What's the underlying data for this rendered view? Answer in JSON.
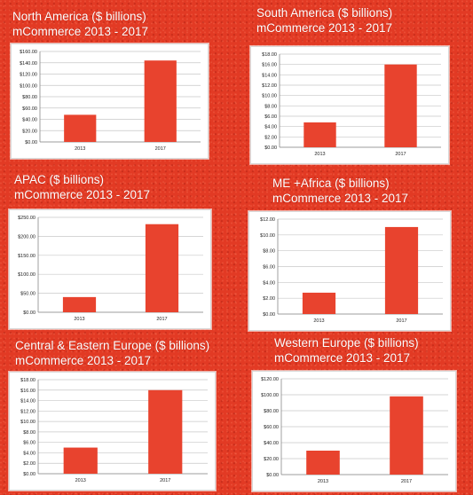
{
  "colors": {
    "bar": "#e8432e",
    "background": "#e23a24",
    "frame": "#ffffff"
  },
  "chart_data": [
    {
      "type": "bar",
      "title": "North America ($ billions)",
      "subtitle": "mCommerce 2013 - 2017",
      "categories": [
        "2013",
        "2017"
      ],
      "values": [
        48,
        144
      ],
      "ylim": [
        0,
        160
      ],
      "yticks": [
        "$0.00",
        "$20.00",
        "$40.00",
        "$60.00",
        "$80.00",
        "$100.00",
        "$120.00",
        "$140.00",
        "$160.00"
      ],
      "grid": true
    },
    {
      "type": "bar",
      "title": "South America ($ billions)",
      "subtitle": "mCommerce 2013 - 2017",
      "categories": [
        "2013",
        "2017"
      ],
      "values": [
        4.8,
        16
      ],
      "ylim": [
        0,
        18
      ],
      "yticks": [
        "$0.00",
        "$2.00",
        "$4.00",
        "$6.00",
        "$8.00",
        "$10.00",
        "$12.00",
        "$14.00",
        "$16.00",
        "$18.00"
      ],
      "grid": true
    },
    {
      "type": "bar",
      "title": "APAC ($ billions)",
      "subtitle": "mCommerce 2013 - 2017",
      "categories": [
        "2013",
        "2017"
      ],
      "values": [
        40,
        232
      ],
      "ylim": [
        0,
        250
      ],
      "yticks": [
        "$0.00",
        "$50.00",
        "$100.00",
        "$150.00",
        "$200.00",
        "$250.00"
      ],
      "grid": true
    },
    {
      "type": "bar",
      "title": "ME +Africa ($ billions)",
      "subtitle": "mCommerce 2013 - 2017",
      "categories": [
        "2013",
        "2017"
      ],
      "values": [
        2.7,
        11
      ],
      "ylim": [
        0,
        12
      ],
      "yticks": [
        "$0.00",
        "$2.00",
        "$4.00",
        "$6.00",
        "$8.00",
        "$10.00",
        "$12.00"
      ],
      "grid": true
    },
    {
      "type": "bar",
      "title": "Central & Eastern Europe ($ billions)",
      "subtitle": "mCommerce 2013 - 2017",
      "categories": [
        "2013",
        "2017"
      ],
      "values": [
        5,
        16
      ],
      "ylim": [
        0,
        18
      ],
      "yticks": [
        "$0.00",
        "$2.00",
        "$4.00",
        "$6.00",
        "$8.00",
        "$10.00",
        "$12.00",
        "$14.00",
        "$16.00",
        "$18.00"
      ],
      "grid": true
    },
    {
      "type": "bar",
      "title": "Western Europe ($ billions)",
      "subtitle": "mCommerce 2013 - 2017",
      "categories": [
        "2013",
        "2017"
      ],
      "values": [
        30,
        98
      ],
      "ylim": [
        0,
        120
      ],
      "yticks": [
        "$0.00",
        "$20.00",
        "$40.00",
        "$60.00",
        "$80.00",
        "$100.00",
        "$120.00"
      ],
      "grid": true
    }
  ]
}
